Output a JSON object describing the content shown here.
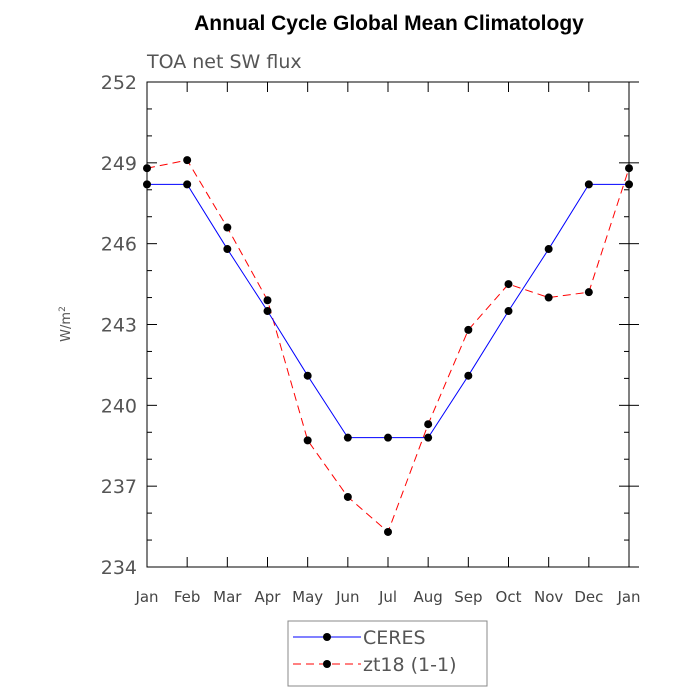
{
  "chart_data": {
    "type": "line",
    "title": "Annual Cycle Global Mean Climatology",
    "subtitle": "TOA net SW flux",
    "xlabel": "",
    "ylabel": "W/m",
    "ylabel_sup": "2",
    "categories": [
      "Jan",
      "Feb",
      "Mar",
      "Apr",
      "May",
      "Jun",
      "Jul",
      "Aug",
      "Sep",
      "Oct",
      "Nov",
      "Dec",
      "Jan"
    ],
    "ylim": [
      234,
      252
    ],
    "yticks": [
      234,
      237,
      240,
      243,
      246,
      249,
      252
    ],
    "series": [
      {
        "name": "CERES",
        "color": "#0000ff",
        "style": "solid",
        "values": [
          248.2,
          248.2,
          245.8,
          243.5,
          241.1,
          238.8,
          238.8,
          238.8,
          241.1,
          243.5,
          245.8,
          248.2,
          248.2
        ]
      },
      {
        "name": "zt18 (1-1)",
        "color": "#ff0000",
        "style": "dashed",
        "values": [
          248.8,
          249.1,
          246.6,
          243.9,
          238.7,
          236.6,
          235.3,
          239.3,
          242.8,
          244.5,
          244.0,
          244.2,
          248.8
        ]
      }
    ],
    "grid": false,
    "legend": "bottom"
  }
}
